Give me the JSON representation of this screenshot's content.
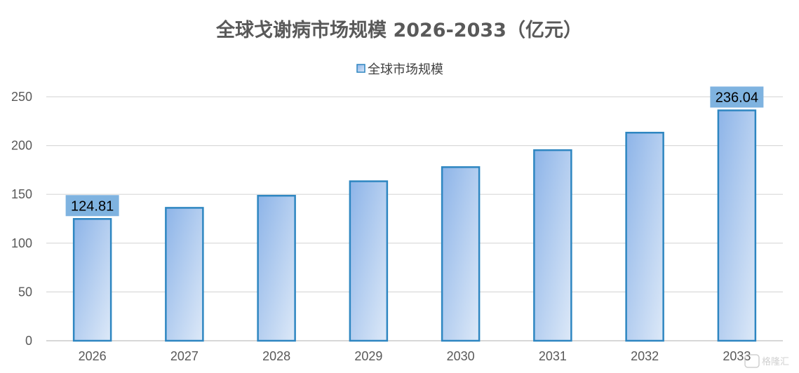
{
  "chart_data": {
    "type": "bar",
    "title": "全球戈谢病市场规模 2026-2033（亿元）",
    "categories": [
      "2026",
      "2027",
      "2028",
      "2029",
      "2030",
      "2031",
      "2032",
      "2033"
    ],
    "series": [
      {
        "name": "全球市场规模",
        "values": [
          124.81,
          136.2,
          148.6,
          163.4,
          177.9,
          195.3,
          213.2,
          236.04
        ]
      }
    ],
    "data_labels": [
      {
        "category": "2026",
        "text": "124.81"
      },
      {
        "category": "2033",
        "text": "236.04"
      }
    ],
    "ylim": [
      0,
      250
    ],
    "yticks": [
      0,
      50,
      100,
      150,
      200,
      250
    ],
    "grid": true,
    "legend_position": "top-center",
    "colors": {
      "bar_fill_start": "#8db4e8",
      "bar_fill_end": "#dde9f8",
      "bar_stroke": "#2e86c1",
      "label_box": "#7fb3e0",
      "grid": "#d9d9d9",
      "axis": "#bfbfbf"
    }
  },
  "watermark": "格隆汇"
}
